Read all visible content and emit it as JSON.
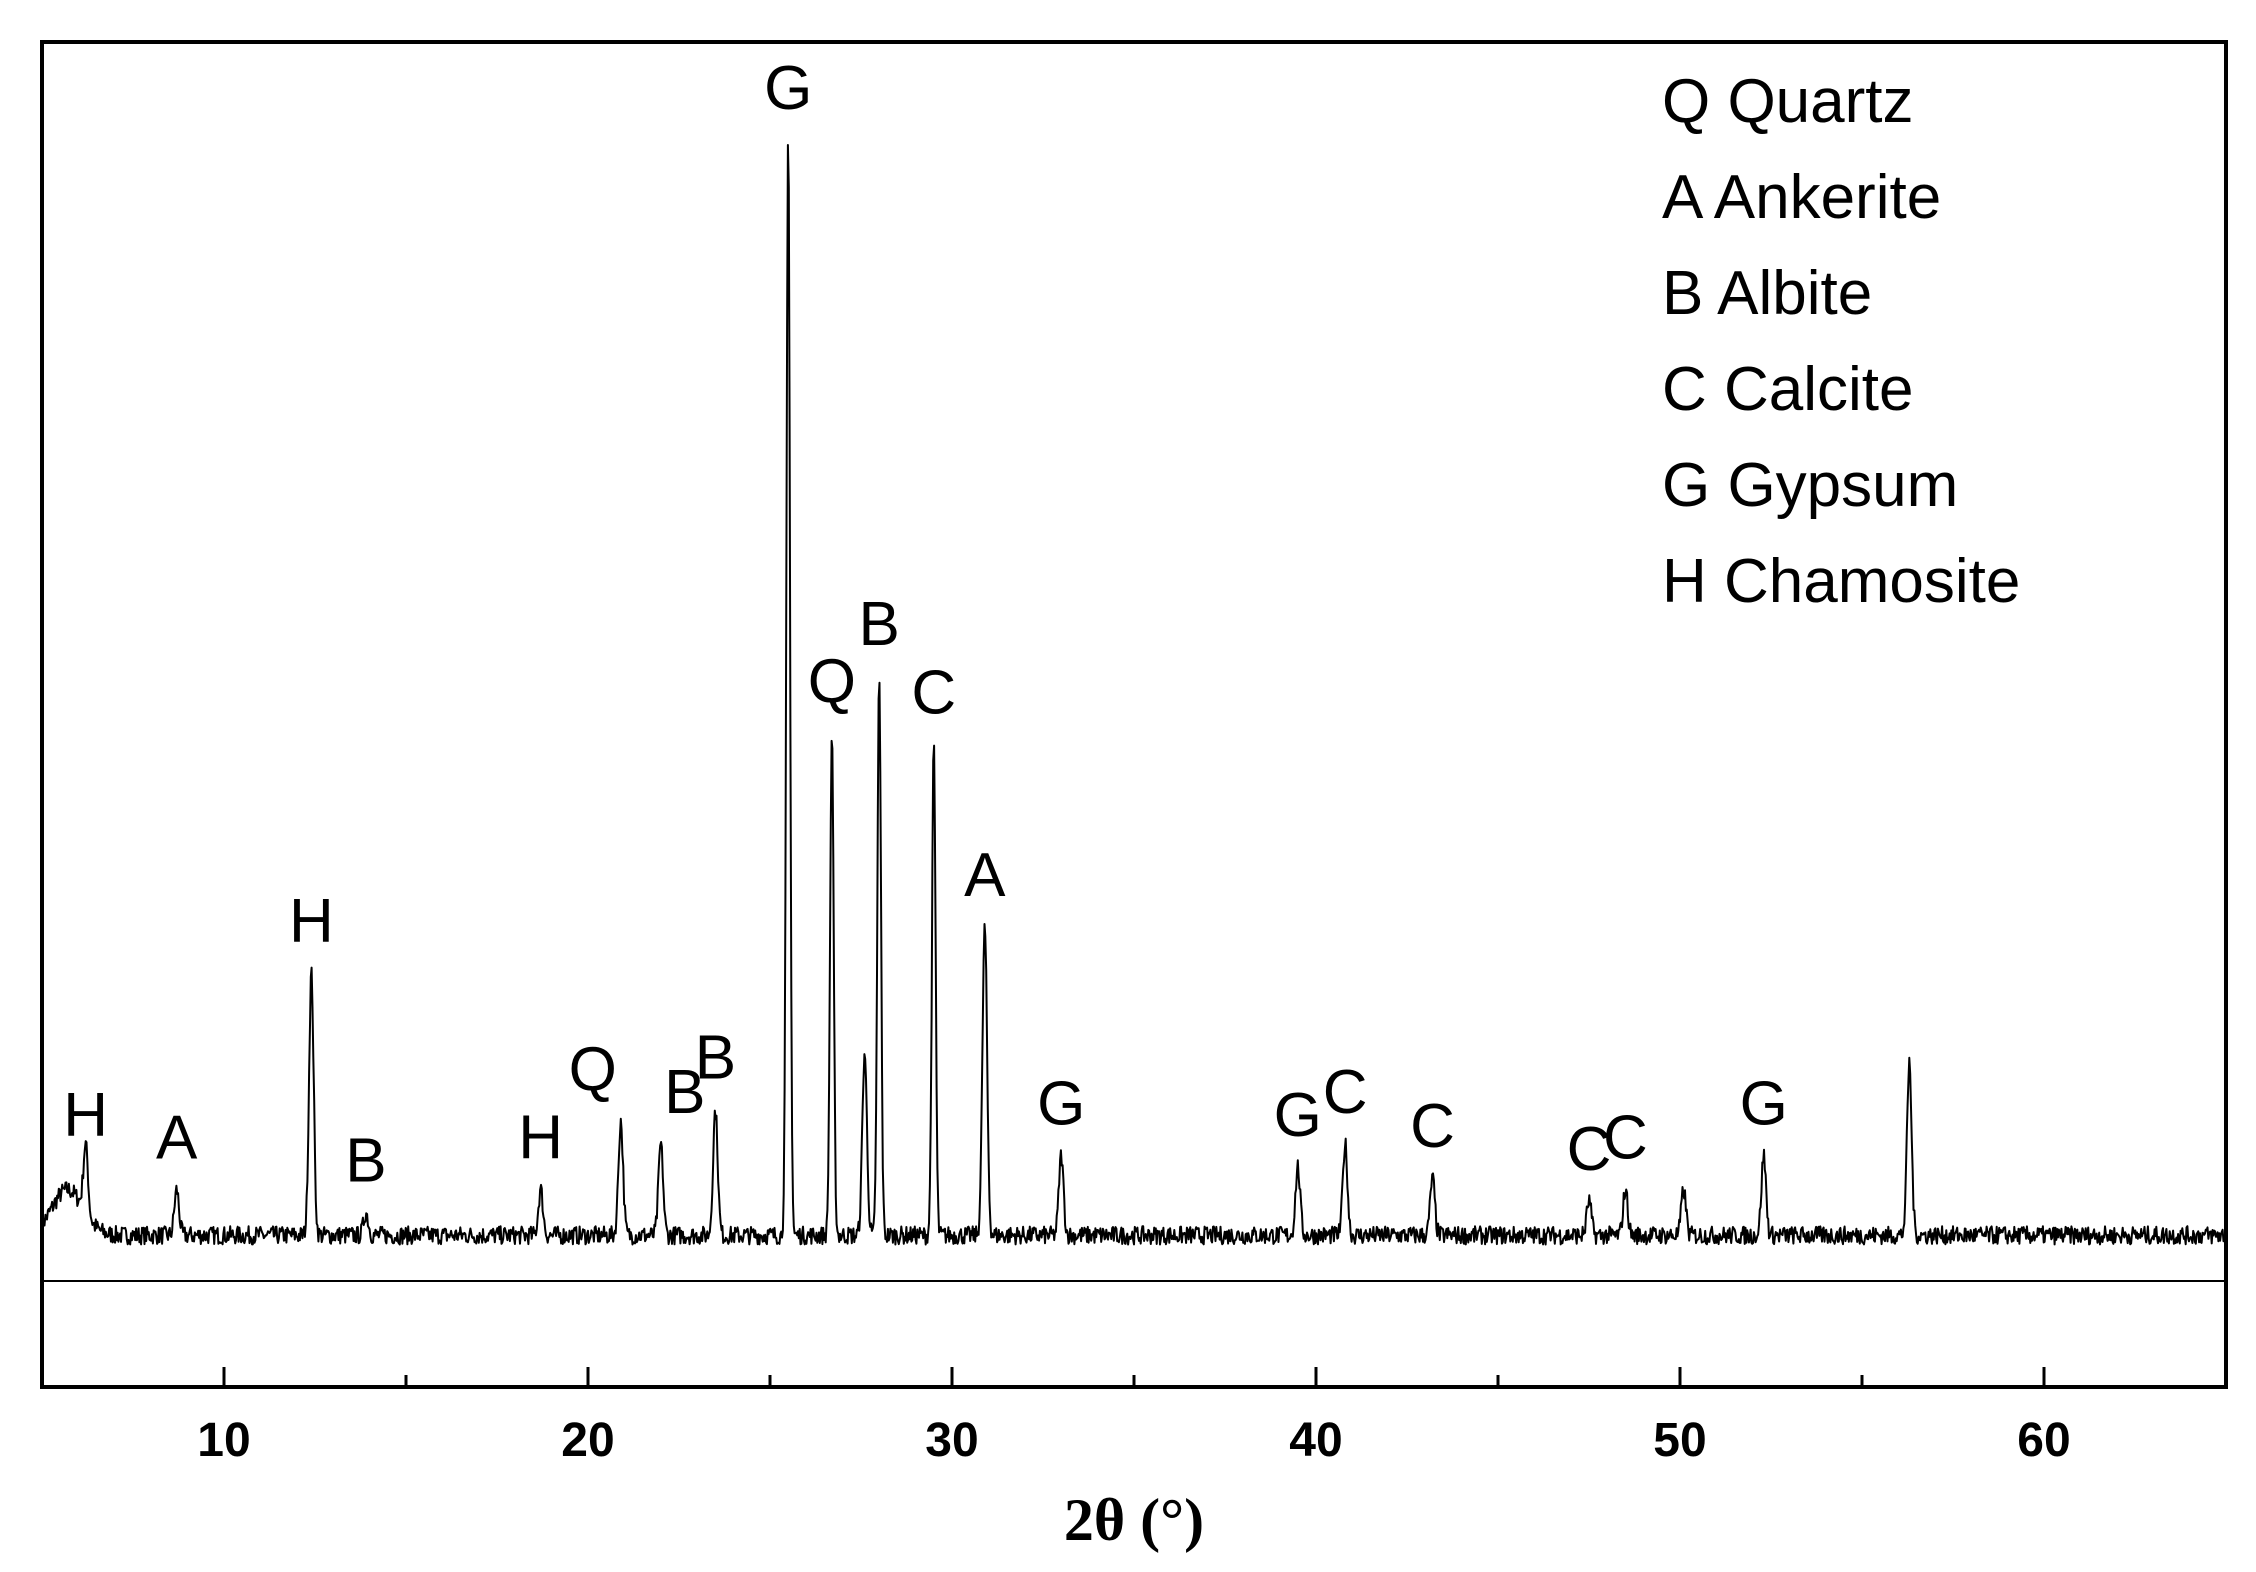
{
  "chart_data": {
    "type": "line",
    "title": "",
    "xlabel": "2θ (°)",
    "ylabel": "",
    "xlim": [
      5,
      65
    ],
    "x_ticks": [
      "10",
      "20",
      "30",
      "40",
      "50",
      "60"
    ],
    "x_tick_values": [
      10,
      20,
      30,
      40,
      50,
      60
    ],
    "grid": false,
    "legend_position": "top-right",
    "legend": [
      {
        "code": "Q",
        "text": "Q Quartz"
      },
      {
        "code": "A",
        "text": "A Ankerite"
      },
      {
        "code": "B",
        "text": "B Albite"
      },
      {
        "code": "C",
        "text": "C Calcite"
      },
      {
        "code": "G",
        "text": "G Gypsum"
      },
      {
        "code": "H",
        "text": "H Chamosite"
      }
    ],
    "series": [
      {
        "baseline": 4,
        "peaks": [
          {
            "x": 6.2,
            "y": 10,
            "label": "H"
          },
          {
            "x": 8.7,
            "y": 8,
            "label": "A"
          },
          {
            "x": 12.4,
            "y": 27,
            "label": "H"
          },
          {
            "x": 13.9,
            "y": 6,
            "label": "B"
          },
          {
            "x": 18.7,
            "y": 8,
            "label": "H"
          },
          {
            "x": 20.9,
            "y": 14,
            "label": "Q"
          },
          {
            "x": 22.0,
            "y": 12,
            "label": "B"
          },
          {
            "x": 23.5,
            "y": 15,
            "label": "B"
          },
          {
            "x": 25.5,
            "y": 100,
            "label": "G"
          },
          {
            "x": 26.7,
            "y": 48,
            "label": "Q"
          },
          {
            "x": 27.6,
            "y": 20,
            "label": ""
          },
          {
            "x": 28.0,
            "y": 53,
            "label": "B"
          },
          {
            "x": 29.5,
            "y": 47,
            "label": "C"
          },
          {
            "x": 30.9,
            "y": 31,
            "label": "A"
          },
          {
            "x": 33.0,
            "y": 11,
            "label": "G"
          },
          {
            "x": 39.5,
            "y": 10,
            "label": "G"
          },
          {
            "x": 40.8,
            "y": 12,
            "label": "C"
          },
          {
            "x": 43.2,
            "y": 9,
            "label": "C"
          },
          {
            "x": 47.5,
            "y": 7,
            "label": "C"
          },
          {
            "x": 48.5,
            "y": 8,
            "label": "C"
          },
          {
            "x": 50.1,
            "y": 8,
            "label": ""
          },
          {
            "x": 52.3,
            "y": 11,
            "label": "G"
          },
          {
            "x": 56.3,
            "y": 19,
            "label": ""
          }
        ]
      }
    ]
  }
}
